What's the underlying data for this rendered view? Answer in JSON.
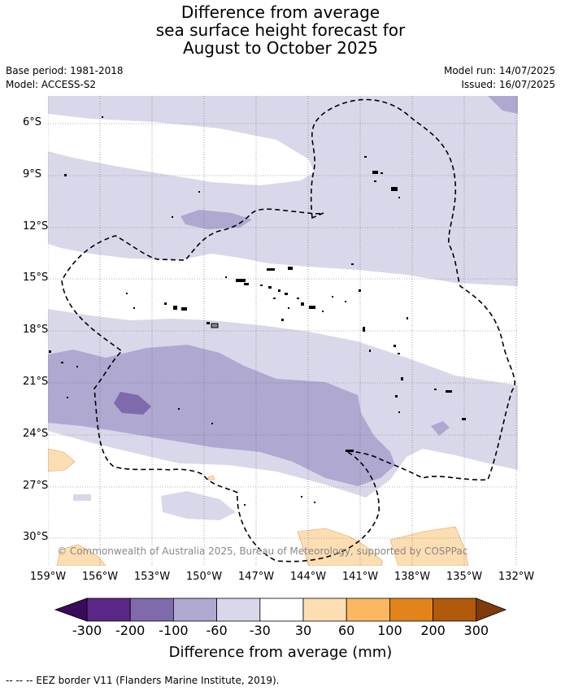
{
  "title": {
    "line1": "Difference from average",
    "line2": "sea surface height forecast for",
    "line3": "August to October 2025"
  },
  "meta": {
    "base_period": "Base period: 1981-2018",
    "model": "Model: ACCESS-S2",
    "model_run": "Model run: 14/07/2025",
    "issued": "Issued: 16/07/2025"
  },
  "map": {
    "lat_labels": [
      "6°S",
      "9°S",
      "12°S",
      "15°S",
      "18°S",
      "21°S",
      "24°S",
      "27°S",
      "30°S"
    ],
    "lon_labels": [
      "159°W",
      "156°W",
      "153°W",
      "150°W",
      "147°W",
      "144°W",
      "141°W",
      "138°W",
      "135°W",
      "132°W"
    ],
    "copyright": "© Commonwealth of Australia 2025, Bureau of Meteorology, supported by COSPPac"
  },
  "colorbar": {
    "ticks": [
      "-300",
      "-200",
      "-100",
      "-60",
      "-30",
      "30",
      "60",
      "100",
      "200",
      "300"
    ],
    "colors": [
      "#5a2787",
      "#7f6aab",
      "#afa8d1",
      "#d8d8ea",
      "#ffffff",
      "#fddeb3",
      "#fbb861",
      "#e2841b",
      "#b25a0b"
    ],
    "under_color": "#3a0b5a",
    "over_color": "#7f3b0a",
    "label": "Difference from average (mm)"
  },
  "footer": "-- -- -- EEZ border V11 (Flanders Marine Institute, 2019)."
}
